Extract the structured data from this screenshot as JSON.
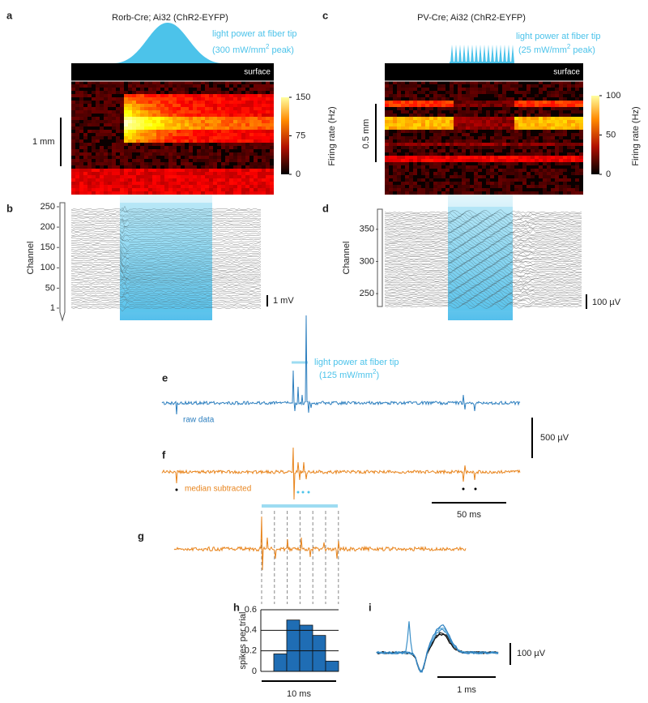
{
  "panels": {
    "a": {
      "letter": "a",
      "title": "Rorb-Cre; Ai32 (ChR2-EYFP)",
      "light_label": "light power at fiber tip",
      "light_power": "(300 mW/mm",
      "light_power_sup": "2",
      "light_power_end": "peak)",
      "surface": "surface",
      "scale_bar": "1 mm",
      "colorbar": {
        "label": "Firing rate (Hz)",
        "ylim": [
          0,
          150
        ],
        "ticks": [
          0,
          75,
          150
        ]
      }
    },
    "b": {
      "letter": "b",
      "ylabel": "Channel",
      "ylim": [
        1,
        250
      ],
      "yticks": [
        1,
        50,
        100,
        150,
        200,
        250
      ],
      "scale_bar": "1 mV"
    },
    "c": {
      "letter": "c",
      "title": "PV-Cre; Ai32 (ChR2-EYFP)",
      "light_label": "light power at fiber tip",
      "light_power": "(25 mW/mm",
      "light_power_sup": "2",
      "light_power_end": "peak)",
      "surface": "surface",
      "scale_bar": "0.5 mm",
      "colorbar": {
        "label": "Firing rate (Hz)",
        "ylim": [
          0,
          100
        ],
        "ticks": [
          0,
          50,
          100
        ]
      }
    },
    "d": {
      "letter": "d",
      "ylabel": "Channel",
      "ylim": [
        230,
        380
      ],
      "yticks": [
        250,
        300,
        350
      ],
      "scale_bar": "100 µV"
    },
    "e": {
      "letter": "e",
      "light_label": "light power at fiber tip",
      "light_power": "(125 mW/mm",
      "light_power_sup": "2",
      "light_power_end": ")",
      "trace_label": "raw data",
      "scale_bar": "500 µV"
    },
    "f": {
      "letter": "f",
      "trace_label": "median subtracted",
      "scale_bar": "50 ms"
    },
    "g": {
      "letter": "g"
    },
    "h": {
      "letter": "h",
      "ylabel": "spikes per trial",
      "ylim": [
        0,
        0.6
      ],
      "yticks": [
        0,
        0.2,
        0.4,
        0.6
      ],
      "values": [
        0,
        0.17,
        0.5,
        0.45,
        0.35,
        0.1
      ],
      "scale_bar": "10 ms"
    },
    "i": {
      "letter": "i",
      "scale_bar_v": "100 µV",
      "scale_bar_h": "1 ms"
    }
  }
}
